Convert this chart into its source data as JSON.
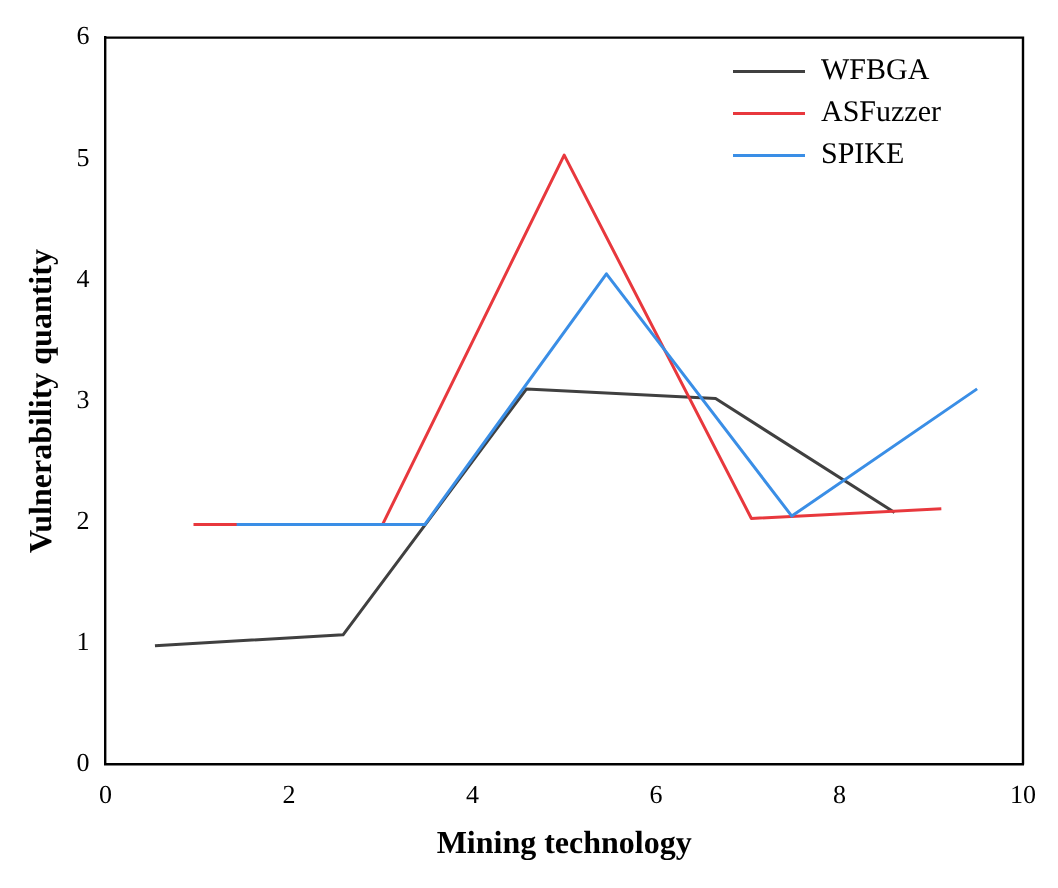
{
  "chart_data": {
    "type": "line",
    "xlabel": "Mining technology",
    "ylabel": "Vulnerability quantity",
    "xlim": [
      0,
      10
    ],
    "xticks": [
      0,
      2,
      4,
      6,
      8,
      10
    ],
    "ylim": [
      0,
      6
    ],
    "yticks": [
      0,
      1,
      2,
      3,
      4,
      5,
      6
    ],
    "grid": false,
    "legend": "top right",
    "marker": "none",
    "line_style": "solid",
    "series": [
      {
        "name": "WFBGA",
        "color": "#404040",
        "x": [
          0.54,
          2.59,
          4.59,
          6.65,
          8.6
        ],
        "values": [
          0.98,
          1.07,
          3.1,
          3.02,
          2.08
        ]
      },
      {
        "name": "ASFuzzer",
        "color": "#e8383d",
        "x": [
          0.96,
          3.02,
          5.0,
          7.04,
          9.11
        ],
        "values": [
          1.98,
          1.98,
          5.03,
          2.03,
          2.11
        ]
      },
      {
        "name": "SPIKE",
        "color": "#3a8ee6",
        "x": [
          1.43,
          3.48,
          5.46,
          7.48,
          9.5
        ],
        "values": [
          1.98,
          1.98,
          4.05,
          2.05,
          3.1
        ]
      }
    ]
  }
}
